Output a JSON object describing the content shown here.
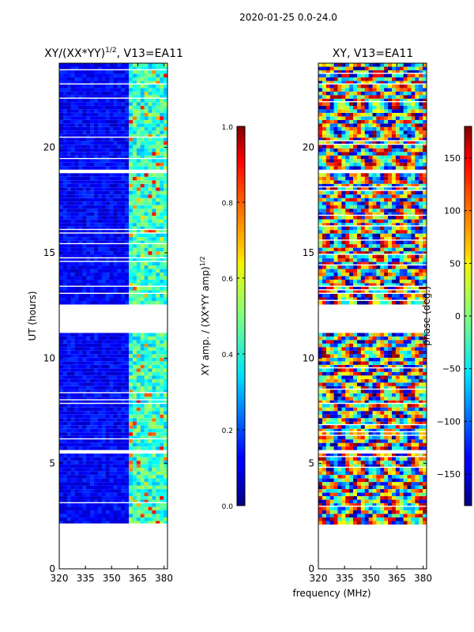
{
  "figure": {
    "suptitle": "2020-01-25 0.0-24.0",
    "xlabel": "frequency (MHz)"
  },
  "chart_data": [
    {
      "type": "heatmap",
      "title_main": "XY/(XX*YY)",
      "title_sup": "1/2",
      "title_tail": ", V13=EA11",
      "ylabel": "UT (hours)",
      "xlim": [
        320,
        382
      ],
      "ylim": [
        0,
        24
      ],
      "xticks": [
        "320",
        "335",
        "350",
        "365",
        "380"
      ],
      "xtick_values": [
        320,
        335,
        350,
        365,
        380
      ],
      "yticks": [
        "0",
        "5",
        "10",
        "15",
        "20"
      ],
      "ytick_values": [
        0,
        5,
        10,
        15,
        20
      ],
      "data_range_hours": [
        2.1,
        24.0
      ],
      "data_gaps_hours": [
        [
          5.5,
          5.7
        ],
        [
          11.2,
          12.5
        ],
        [
          18.7,
          18.9
        ]
      ],
      "colorbar": {
        "label_main": "XY amp. / (XX*YY amp)",
        "label_sup": "1/2",
        "range": [
          0.0,
          1.0
        ],
        "ticks": [
          "0.0",
          "0.2",
          "0.4",
          "0.6",
          "0.8",
          "1.0"
        ],
        "tick_values": [
          0.0,
          0.2,
          0.4,
          0.6,
          0.8,
          1.0
        ]
      }
    },
    {
      "type": "heatmap",
      "title": "XY, V13=EA11",
      "ylabel": "",
      "xlim": [
        320,
        382
      ],
      "ylim": [
        0,
        24
      ],
      "xticks": [
        "320",
        "335",
        "350",
        "365",
        "380"
      ],
      "xtick_values": [
        320,
        335,
        350,
        365,
        380
      ],
      "yticks": [
        "0",
        "5",
        "10",
        "15",
        "20"
      ],
      "ytick_values": [
        0,
        5,
        10,
        15,
        20
      ],
      "data_range_hours": [
        2.1,
        24.0
      ],
      "data_gaps_hours": [
        [
          5.5,
          5.7
        ],
        [
          11.2,
          12.5
        ],
        [
          18.7,
          18.9
        ]
      ],
      "colorbar": {
        "label": "phase (deg.)",
        "range": [
          -180,
          180
        ],
        "ticks": [
          "−150",
          "−100",
          "−50",
          "0",
          "50",
          "100",
          "150"
        ],
        "tick_values": [
          -150,
          -100,
          -50,
          0,
          50,
          100,
          150
        ]
      }
    }
  ]
}
